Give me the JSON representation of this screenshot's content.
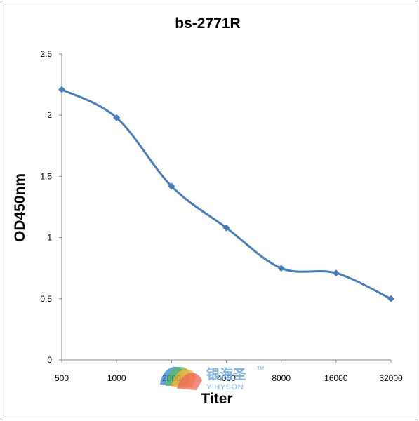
{
  "chart_data": {
    "type": "line",
    "title": "bs-2771R",
    "xlabel": "Titer",
    "ylabel": "OD450nm",
    "categories": [
      "500",
      "1000",
      "2000",
      "4000",
      "8000",
      "16000",
      "32000"
    ],
    "values": [
      2.21,
      1.98,
      1.42,
      1.08,
      0.75,
      0.71,
      0.5
    ],
    "ylim": [
      0,
      2.5
    ],
    "yticks": [
      "0",
      "0.5",
      "1",
      "1.5",
      "2",
      "2.5"
    ],
    "grid": false,
    "legend": "none",
    "line_color": "#4a7ebb",
    "marker": "diamond"
  },
  "watermark": {
    "chinese": "银海圣",
    "english": "YIHYSON",
    "trademark": "TM",
    "colors": [
      "#e94b3c",
      "#f6a623",
      "#41b04a",
      "#2e7fd1"
    ]
  }
}
